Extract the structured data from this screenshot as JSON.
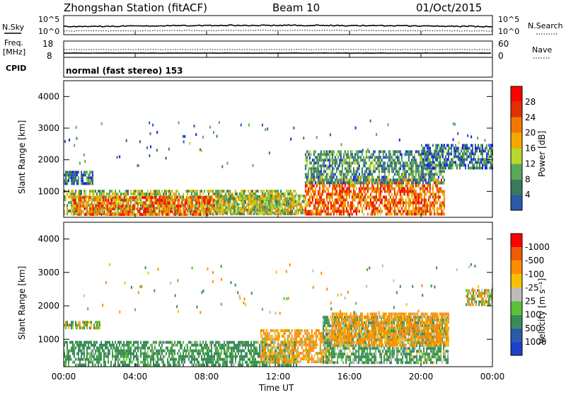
{
  "header": {
    "title": "Zhongshan Station (fitACF)",
    "beam": "Beam 10",
    "date": "01/Oct/2015"
  },
  "strip_labels": {
    "nsky": "N.Sky",
    "nsearch": "N.Search",
    "freq": "Freq.",
    "freq_unit": "[MHz]",
    "nave": "Nave",
    "cpid": "CPID",
    "cpid_value": "normal (fast stereo) 153"
  },
  "noise_axis": {
    "left_top": "10^5",
    "left_bottom": "10^0",
    "right_top": "10^5",
    "right_bottom": "10^0"
  },
  "freq_axis": {
    "left_top": "18",
    "left_bottom": "8",
    "right_top": "60",
    "right_bottom": "0"
  },
  "time_ticks": [
    "00:00",
    "04:00",
    "08:00",
    "12:00",
    "16:00",
    "20:00",
    "00:00"
  ],
  "x_label": "Time UT",
  "range_ticks": [
    "1000",
    "2000",
    "3000",
    "4000"
  ],
  "y_label": "Slant Range [km]",
  "colorbars": {
    "power": {
      "label": "Power [dB]",
      "ticks": [
        "4",
        "8",
        "12",
        "16",
        "20",
        "24",
        "28"
      ]
    },
    "velocity": {
      "label": "Velocity  [m s⁻¹]",
      "ticks": [
        "1000",
        "500",
        "100",
        "25",
        "-25",
        "-100",
        "-500",
        "-1000"
      ]
    }
  },
  "palette": {
    "power": [
      "#1a1aff",
      "#2a5aa8",
      "#3a7a5a",
      "#58a858",
      "#b8d830",
      "#f5a800",
      "#f07800",
      "#e03000",
      "#ff0000"
    ],
    "velocity_neg_to_pos": [
      "#ff0000",
      "#f05a00",
      "#ff8c00",
      "#f5c000",
      "#bcbcbc",
      "#5cc038",
      "#3a8a5a",
      "#2a5aa8",
      "#1f40c8"
    ]
  },
  "chart_data": [
    {
      "type": "heatmap",
      "title": "Power",
      "x": "Time UT (00:00 to 24:00)",
      "y": "Slant Range [km]",
      "ylim": [
        180,
        4500
      ],
      "xlim": [
        "00:00",
        "00:00"
      ],
      "colorbar": {
        "label": "Power [dB]",
        "min": 0,
        "max": 32,
        "ticks": [
          4,
          8,
          12,
          16,
          20,
          24,
          28
        ]
      },
      "bands": [
        {
          "t_start_h": 0.0,
          "t_end_h": 1.6,
          "range_km": [
            1250,
            1650
          ],
          "value": 8
        },
        {
          "t_start_h": 0.0,
          "t_end_h": 13.0,
          "range_km": [
            250,
            1050
          ],
          "value": 14
        },
        {
          "t_start_h": 0.5,
          "t_end_h": 8.5,
          "range_km": [
            300,
            850
          ],
          "value": 24
        },
        {
          "t_start_h": 8.5,
          "t_end_h": 13.5,
          "range_km": [
            300,
            900
          ],
          "value": 16
        },
        {
          "t_start_h": 13.5,
          "t_end_h": 21.3,
          "range_km": [
            300,
            1400
          ],
          "value": 24
        },
        {
          "t_start_h": 13.5,
          "t_end_h": 21.3,
          "range_km": [
            1300,
            2300
          ],
          "value": 10
        },
        {
          "t_start_h": 20.0,
          "t_end_h": 24.0,
          "range_km": [
            1700,
            2500
          ],
          "value": 8
        }
      ]
    },
    {
      "type": "heatmap",
      "title": "Velocity",
      "x": "Time UT (00:00 to 24:00)",
      "y": "Slant Range [km]",
      "ylim": [
        180,
        4500
      ],
      "xlim": [
        "00:00",
        "00:00"
      ],
      "colorbar": {
        "label": "Velocity [m s-1]",
        "ticks": [
          1000,
          500,
          100,
          25,
          -25,
          -100,
          -500,
          -1000
        ]
      },
      "bands": [
        {
          "t_start_h": 0.0,
          "t_end_h": 2.0,
          "range_km": [
            1300,
            1550
          ],
          "value": 0
        },
        {
          "t_start_h": 0.0,
          "t_end_h": 13.0,
          "range_km": [
            250,
            950
          ],
          "value": 200
        },
        {
          "t_start_h": 11.0,
          "t_end_h": 15.0,
          "range_km": [
            300,
            1300
          ],
          "value": -150
        },
        {
          "t_start_h": 14.5,
          "t_end_h": 21.5,
          "range_km": [
            300,
            1700
          ],
          "value": 150
        },
        {
          "t_start_h": 15.0,
          "t_end_h": 21.5,
          "range_km": [
            800,
            1800
          ],
          "value": -200
        },
        {
          "t_start_h": 22.5,
          "t_end_h": 24.0,
          "range_km": [
            2000,
            2500
          ],
          "value": 0
        }
      ]
    }
  ]
}
